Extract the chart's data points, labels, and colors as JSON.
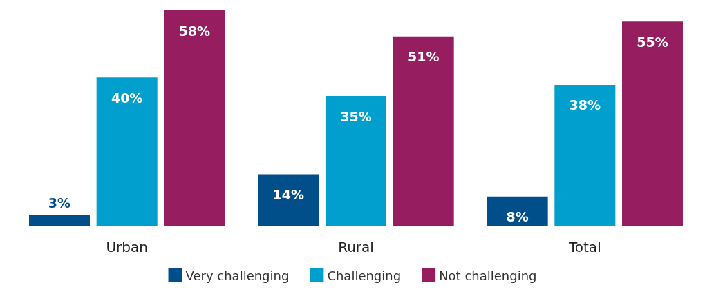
{
  "chart_data": {
    "type": "bar",
    "categories": [
      "Urban",
      "Rural",
      "Total"
    ],
    "series": [
      {
        "name": "Very challenging",
        "color": "#004f8a",
        "values": [
          3,
          14,
          8
        ],
        "value_labels": [
          "3%",
          "14%",
          "8%"
        ]
      },
      {
        "name": "Challenging",
        "color": "#009fce",
        "values": [
          40,
          35,
          38
        ],
        "value_labels": [
          "40%",
          "35%",
          "38%"
        ]
      },
      {
        "name": "Not challenging",
        "color": "#961e60",
        "values": [
          58,
          51,
          55
        ],
        "value_labels": [
          "58%",
          "51%",
          "55%"
        ]
      }
    ],
    "legend": "bottom"
  }
}
